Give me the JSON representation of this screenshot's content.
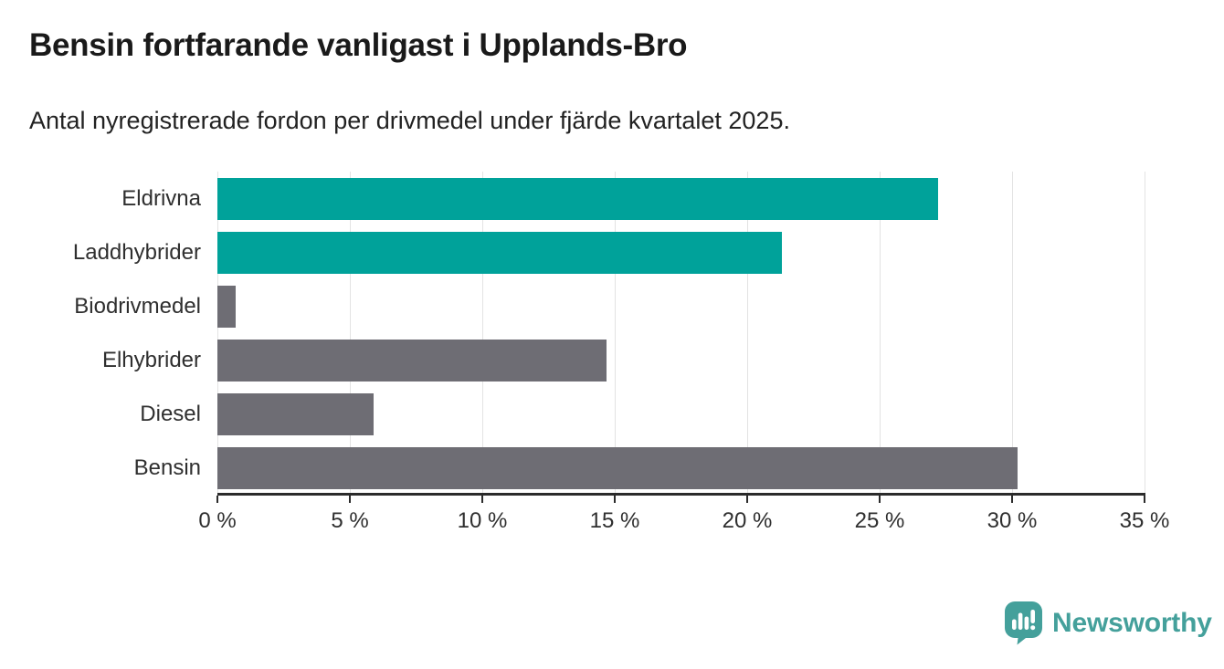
{
  "header": {
    "title": "Bensin fortfarande vanligast i Upplands-Bro",
    "subtitle": "Antal nyregistrerade fordon per drivmedel under fjärde kvartalet 2025."
  },
  "chart_data": {
    "type": "bar",
    "orientation": "horizontal",
    "title": "Bensin fortfarande vanligast i Upplands-Bro",
    "subtitle": "Antal nyregistrerade fordon per drivmedel under fjärde kvartalet 2025.",
    "xlabel": "",
    "ylabel": "",
    "unit": "%",
    "categories": [
      "Eldrivna",
      "Laddhybrider",
      "Biodrivmedel",
      "Elhybrider",
      "Diesel",
      "Bensin"
    ],
    "values": [
      27.2,
      21.3,
      0.7,
      14.7,
      5.9,
      30.2
    ],
    "bar_colors": [
      "#00A29A",
      "#00A29A",
      "#6E6D74",
      "#6E6D74",
      "#6E6D74",
      "#6E6D74"
    ],
    "xlim": [
      0,
      35
    ],
    "x_ticks": [
      0,
      5,
      10,
      15,
      20,
      25,
      30,
      35
    ],
    "x_tick_labels": [
      "0 %",
      "5 %",
      "10 %",
      "15 %",
      "20 %",
      "25 %",
      "30 %",
      "35 %"
    ],
    "grid": "vertical-gridlines-on",
    "legend": "none"
  },
  "footer": {
    "brand": "Newsworthy",
    "logo_icon": "newsworthy-speech-bubble-bar-chart-icon"
  },
  "colors": {
    "accent_teal": "#00A29A",
    "bar_gray": "#6E6D74",
    "gridline": "#E3E3E3",
    "axis": "#2B2B2B",
    "title_text": "#1A1A1A",
    "label_text": "#2F2F2F",
    "brand_teal": "#44A09B"
  }
}
